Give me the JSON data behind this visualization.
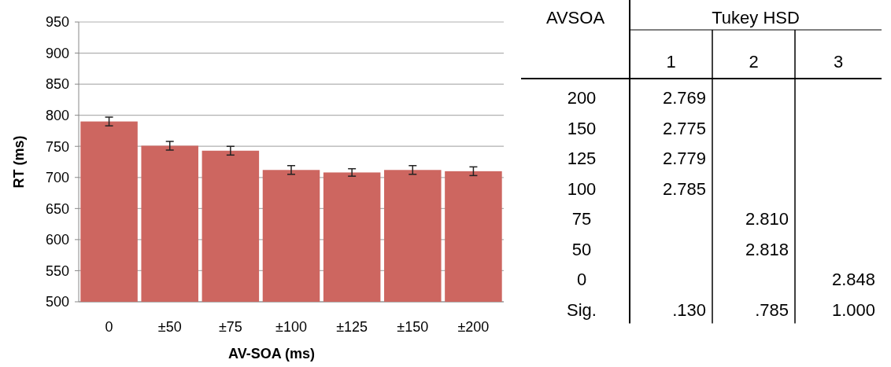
{
  "chart_data": [
    {
      "type": "bar",
      "xlabel": "AV-SOA (ms)",
      "ylabel": "RT (ms)",
      "categories": [
        "0",
        "±50",
        "±75",
        "±100",
        "±125",
        "±150",
        "±200"
      ],
      "values": [
        790,
        751,
        743,
        712,
        708,
        712,
        710
      ],
      "errors": [
        7,
        7,
        7,
        7,
        6,
        7,
        7
      ],
      "color": "#cd6660",
      "ylim": [
        500,
        950
      ],
      "yticks": [
        500,
        550,
        600,
        650,
        700,
        750,
        800,
        850,
        900,
        950
      ],
      "grid": "y"
    },
    {
      "type": "heatmap",
      "title": "Tukey HSD",
      "ylabel": "AVSOA",
      "categories": [
        "1",
        "2",
        "3"
      ],
      "y_categories": [
        "200",
        "150",
        "125",
        "100",
        "75",
        "50",
        "0",
        "Sig."
      ],
      "cells": [
        [
          2.769,
          null,
          null
        ],
        [
          2.775,
          null,
          null
        ],
        [
          2.779,
          null,
          null
        ],
        [
          2.785,
          null,
          null
        ],
        [
          null,
          2.81,
          null
        ],
        [
          null,
          2.818,
          null
        ],
        [
          null,
          null,
          2.848
        ],
        [
          0.13,
          0.785,
          1.0
        ]
      ],
      "cell_labels": [
        [
          "2.769",
          null,
          null
        ],
        [
          "2.775",
          null,
          null
        ],
        [
          "2.779",
          null,
          null
        ],
        [
          "2.785",
          null,
          null
        ],
        [
          null,
          "2.810",
          null
        ],
        [
          null,
          "2.818",
          null
        ],
        [
          null,
          null,
          "2.848"
        ],
        [
          ".130",
          ".785",
          "1.000"
        ]
      ]
    }
  ]
}
